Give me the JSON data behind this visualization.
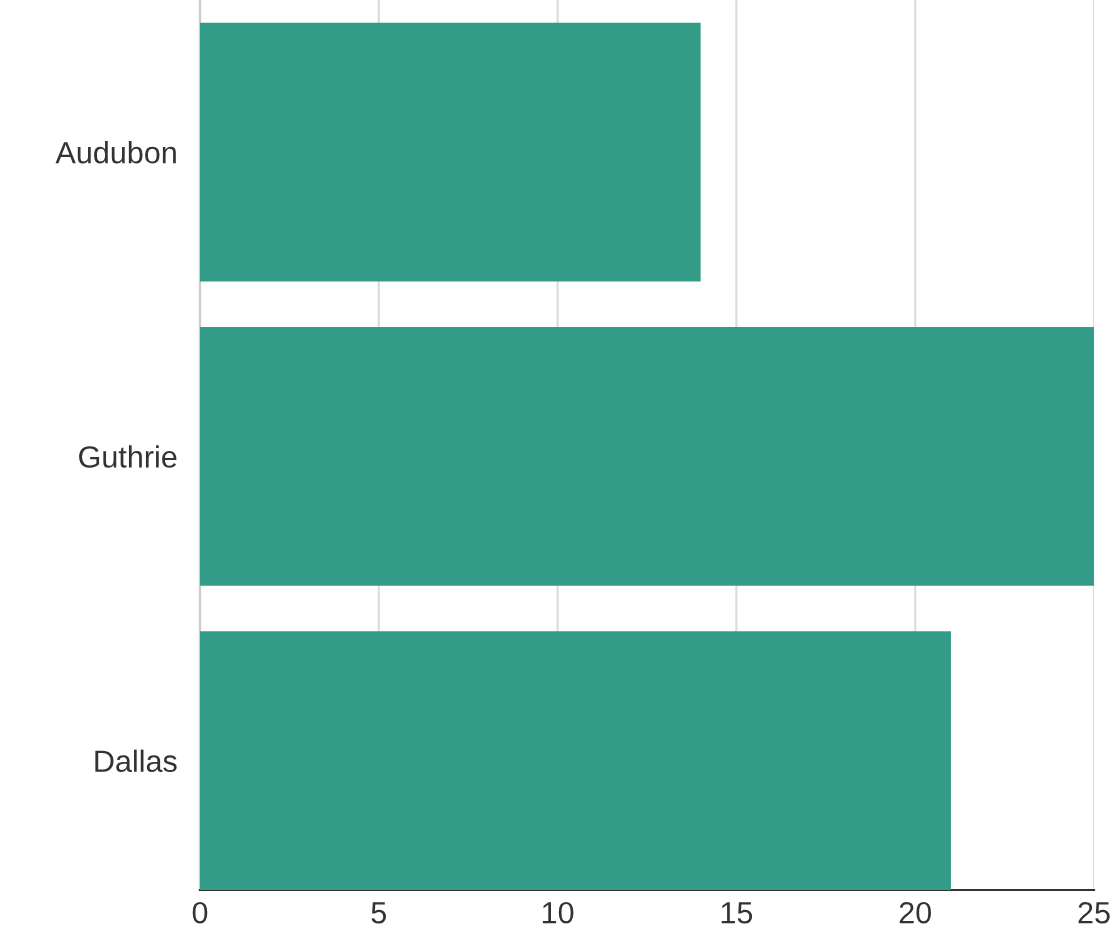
{
  "chart_data": {
    "type": "bar",
    "orientation": "horizontal",
    "categories": [
      "Audubon",
      "Guthrie",
      "Dallas"
    ],
    "values": [
      14,
      25,
      21
    ],
    "color": "#339c87",
    "xlim": [
      0,
      25
    ],
    "xticks": [
      0,
      5,
      10,
      15,
      20,
      25
    ],
    "grid": "x"
  }
}
